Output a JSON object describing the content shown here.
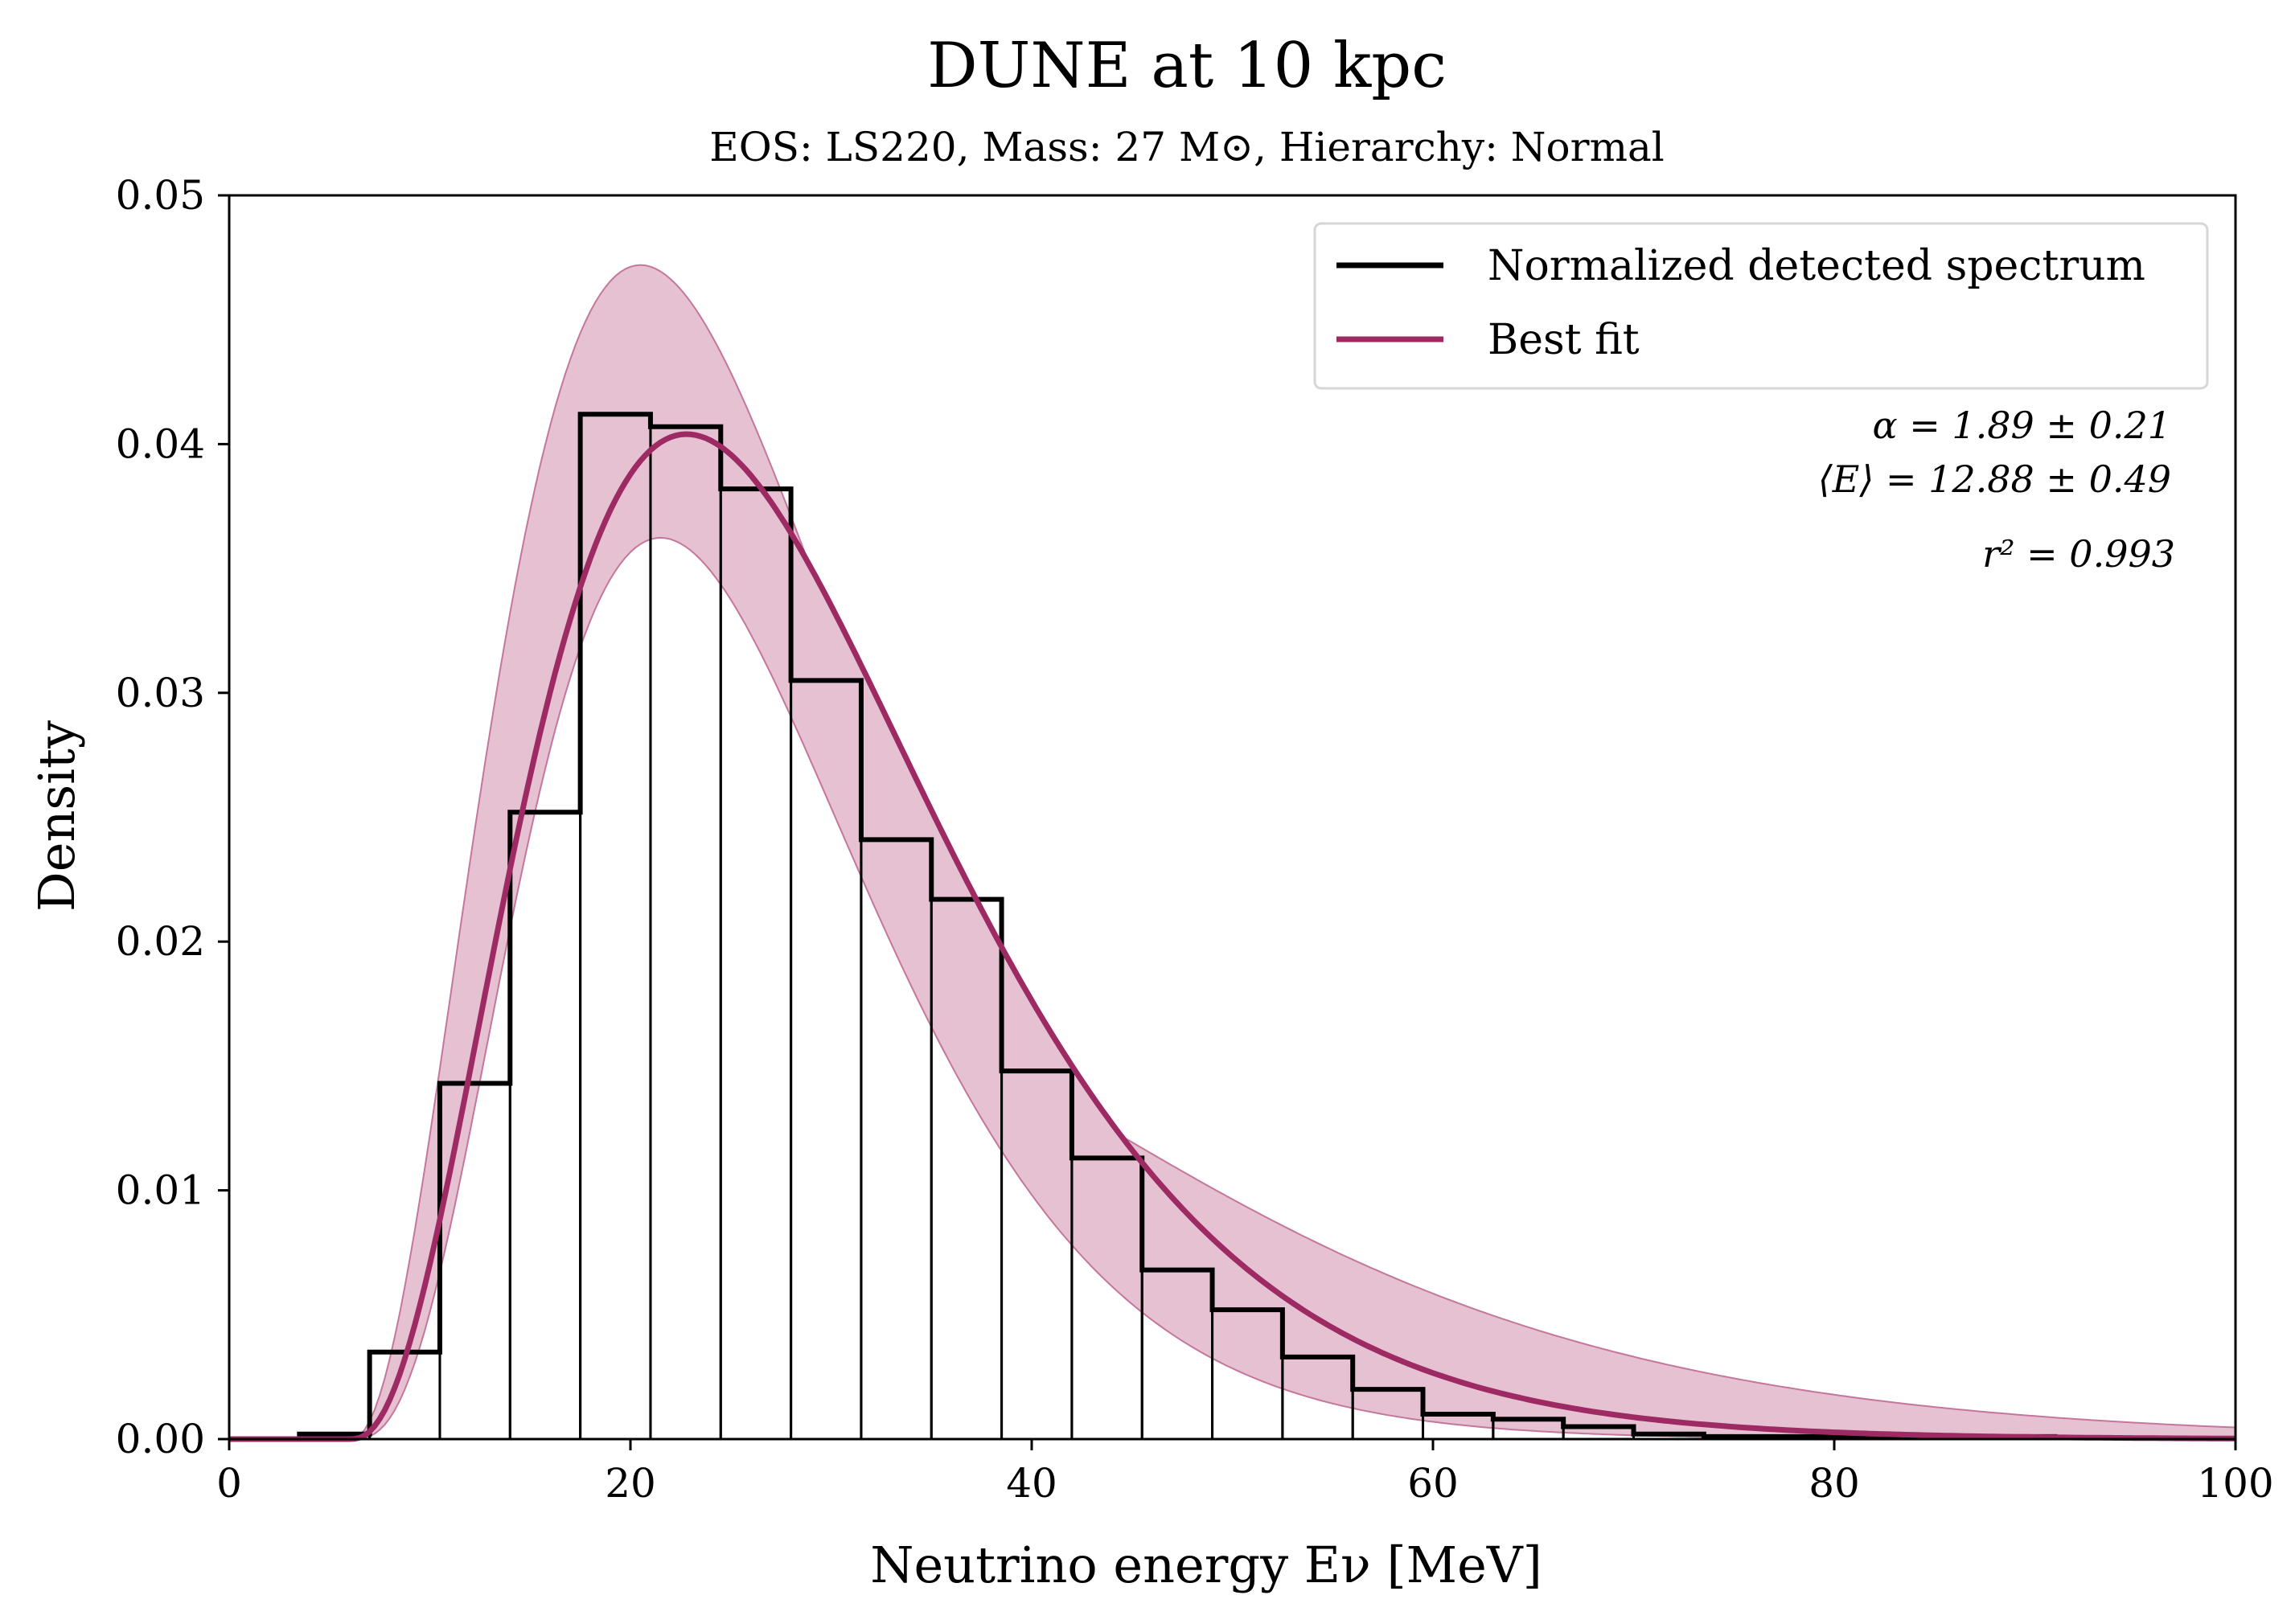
{
  "chart_data": {
    "type": "bar",
    "title": "DUNE at 10 kpc",
    "subtitle": "EOS: LS220, Mass: 27 M⊙, Hierarchy: Normal",
    "xlabel": "Neutrino energy Eν [MeV]",
    "ylabel": "Density",
    "xlim": [
      0,
      100
    ],
    "ylim": [
      0,
      0.05
    ],
    "xticks": [
      0,
      20,
      40,
      60,
      80,
      100
    ],
    "yticks": [
      0.0,
      0.01,
      0.02,
      0.03,
      0.04,
      0.05
    ],
    "xtick_labels": [
      "0",
      "20",
      "40",
      "60",
      "80",
      "100"
    ],
    "ytick_labels": [
      "0.00",
      "0.01",
      "0.02",
      "0.03",
      "0.04",
      "0.05"
    ],
    "grid": false,
    "legend_position": "top-right",
    "legend": [
      "Normalized detected spectrum",
      "Best fit"
    ],
    "bin_edges": [
      3.5,
      7.0,
      10.5,
      14.0,
      17.5,
      21.0,
      24.5,
      28.0,
      31.5,
      35.0,
      38.5,
      42.0,
      45.5,
      49.0,
      52.5,
      56.0,
      59.5,
      63.0,
      66.5,
      70.0,
      73.5,
      77.0,
      80.5,
      84.0,
      87.5,
      91.0
    ],
    "series": [
      {
        "name": "Normalized detected spectrum",
        "style": "step",
        "color": "#000000",
        "values": [
          0.0002,
          0.0035,
          0.0143,
          0.0252,
          0.0412,
          0.0407,
          0.0382,
          0.0305,
          0.0241,
          0.0217,
          0.0148,
          0.0113,
          0.0068,
          0.0052,
          0.0033,
          0.002,
          0.001,
          0.0008,
          0.0005,
          0.0002,
          0.0001,
          0.0001,
          0.0001,
          0.0001,
          0.0001
        ]
      },
      {
        "name": "Best fit",
        "style": "line",
        "color": "#9e2a64",
        "model": "alpha-fit spectrum",
        "alpha": 1.89,
        "mean_energy": 12.88,
        "peak": [
          22.8,
          0.0404
        ]
      }
    ],
    "uncertainty_band": {
      "color": "#c5769c",
      "opacity": 0.45,
      "upper_peak": [
        20.5,
        0.0472
      ],
      "lower_peak": [
        24.8,
        0.034
      ]
    },
    "annotations": [
      "α = 1.89 ± 0.21",
      "⟨E⟩ = 12.88 ± 0.49",
      "r² = 0.993"
    ]
  }
}
